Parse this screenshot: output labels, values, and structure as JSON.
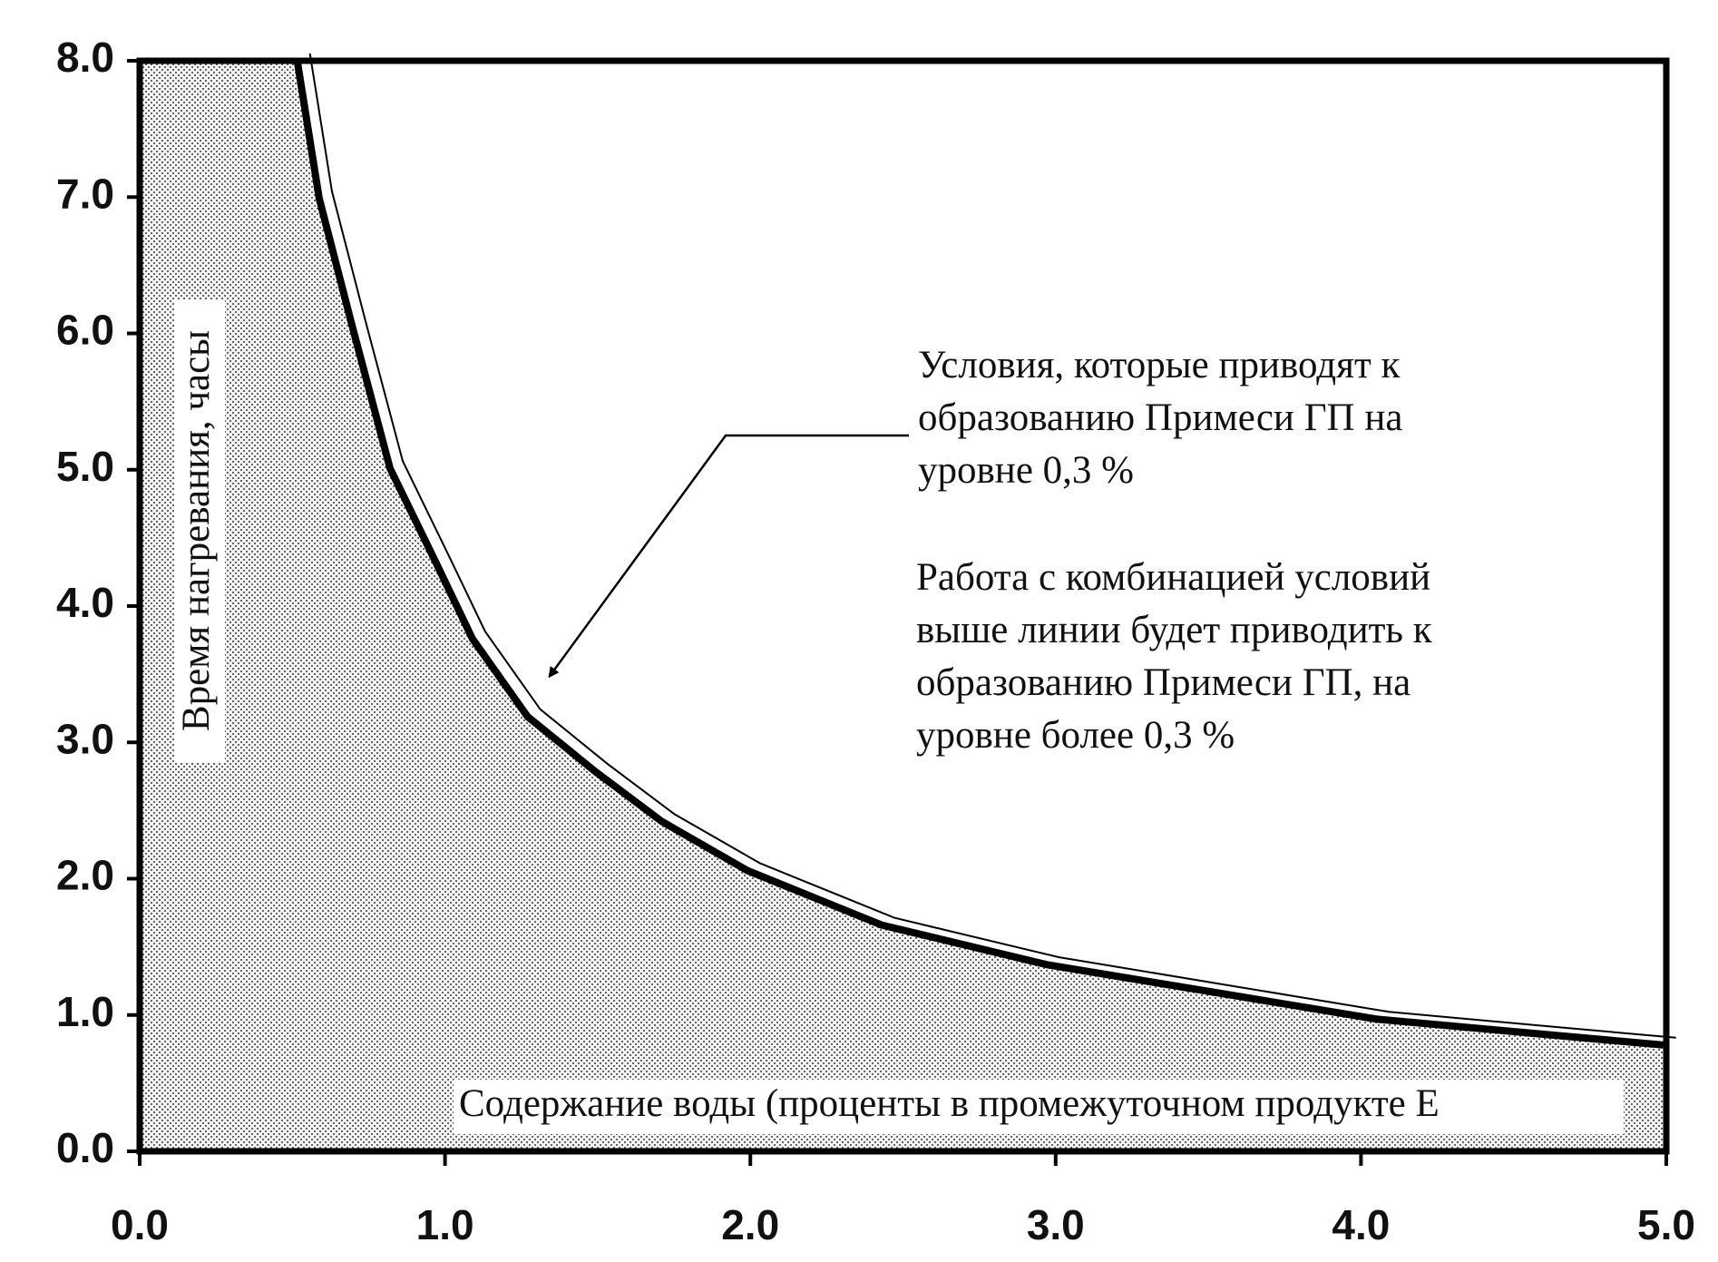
{
  "chart_data": {
    "type": "area",
    "x_label": "Содержание воды (проценты в промежуточном продукте Е",
    "y_label": "Время нагревания, часы",
    "x": [
      0.516,
      0.588,
      0.7,
      0.82,
      0.97,
      1.09,
      1.27,
      1.49,
      1.71,
      1.99,
      2.43,
      2.97,
      3.51,
      4.05,
      4.59,
      4.99
    ],
    "values": [
      8.0,
      6.99,
      6.02,
      5.01,
      4.32,
      3.76,
      3.19,
      2.79,
      2.42,
      2.06,
      1.66,
      1.37,
      1.17,
      0.97,
      0.86,
      0.78
    ],
    "color": "#000000",
    "xlim": [
      0,
      5
    ],
    "ylim": [
      0,
      8
    ],
    "xticks": [
      {
        "value": 0,
        "label": "0.0"
      },
      {
        "value": 1,
        "label": "1.0"
      },
      {
        "value": 2,
        "label": "2.0"
      },
      {
        "value": 3,
        "label": "3.0"
      },
      {
        "value": 4,
        "label": "4.0"
      },
      {
        "value": 5,
        "label": "5.0"
      }
    ],
    "yticks": [
      {
        "value": 0,
        "label": "0.0"
      },
      {
        "value": 1,
        "label": "1.0"
      },
      {
        "value": 2,
        "label": "2.0"
      },
      {
        "value": 3,
        "label": "3.0"
      },
      {
        "value": 4,
        "label": "4.0"
      },
      {
        "value": 5,
        "label": "5.0"
      },
      {
        "value": 6,
        "label": "6.0"
      },
      {
        "value": 7,
        "label": "7.0"
      },
      {
        "value": 8,
        "label": "8.0"
      }
    ],
    "annotations": [
      {
        "lines": [
          "Условия, которые приводят к",
          "образованию Примеси ГП на",
          "уровне 0,3 %"
        ],
        "x": 1.33,
        "y": 3.43
      },
      {
        "lines": [
          "Работа с комбинацией условий",
          "выше линии будет приводить к",
          "образованию Примеси ГП, на",
          "уровне более 0,3 %"
        ]
      }
    ]
  }
}
